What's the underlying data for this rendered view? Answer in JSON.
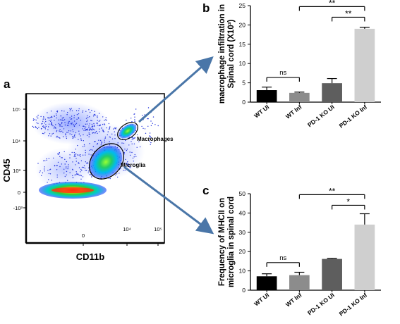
{
  "panel_a": {
    "letter": "a",
    "title": "",
    "xlabel": "CD11b",
    "ylabel": "CD45",
    "x_ticks": [
      "0",
      "10⁴",
      "10⁵"
    ],
    "y_ticks": [
      "10⁵",
      "10⁴",
      "10³",
      "0",
      "-10³"
    ],
    "gates": [
      "Macrophages",
      "Microglia"
    ]
  },
  "chart_data": [
    {
      "panel": "b",
      "type": "bar",
      "categories": [
        "WT UI",
        "WT Inf",
        "PD-1 KO UI",
        "PD-1 KO Inf"
      ],
      "values": [
        3.1,
        2.4,
        4.9,
        19.0
      ],
      "errors": [
        0.8,
        0.2,
        1.2,
        0.4
      ],
      "colors": [
        "#000000",
        "#8c8c8c",
        "#5e5e5e",
        "#cfcfcf"
      ],
      "ylabel_line1": "macrophage  infiltration in",
      "ylabel_line2": "Spinal cord (X10³)",
      "xlabel": "",
      "ylim": [
        0,
        25
      ],
      "yticks": [
        0,
        5,
        10,
        15,
        20,
        25
      ],
      "significance": [
        {
          "from": 0,
          "to": 1,
          "label": "ns"
        },
        {
          "from": 2,
          "to": 3,
          "label": "**"
        },
        {
          "from": 1,
          "to": 3,
          "label": "**"
        }
      ]
    },
    {
      "panel": "c",
      "type": "bar",
      "categories": [
        "WT UI",
        "WT Inf",
        "PD-1 KO UI",
        "PD-1 KO Inf"
      ],
      "values": [
        7.2,
        7.8,
        16.2,
        34.0
      ],
      "errors": [
        1.3,
        1.5,
        0.3,
        5.6
      ],
      "colors": [
        "#000000",
        "#8c8c8c",
        "#5e5e5e",
        "#cfcfcf"
      ],
      "ylabel_line1": "Frequency of MHCII on",
      "ylabel_line2": "microglia in spinal cord",
      "xlabel": "",
      "ylim": [
        0,
        50
      ],
      "yticks": [
        0,
        10,
        20,
        30,
        40,
        50
      ],
      "significance": [
        {
          "from": 0,
          "to": 1,
          "label": "ns"
        },
        {
          "from": 2,
          "to": 3,
          "label": "*"
        },
        {
          "from": 1,
          "to": 3,
          "label": "**"
        }
      ]
    }
  ]
}
